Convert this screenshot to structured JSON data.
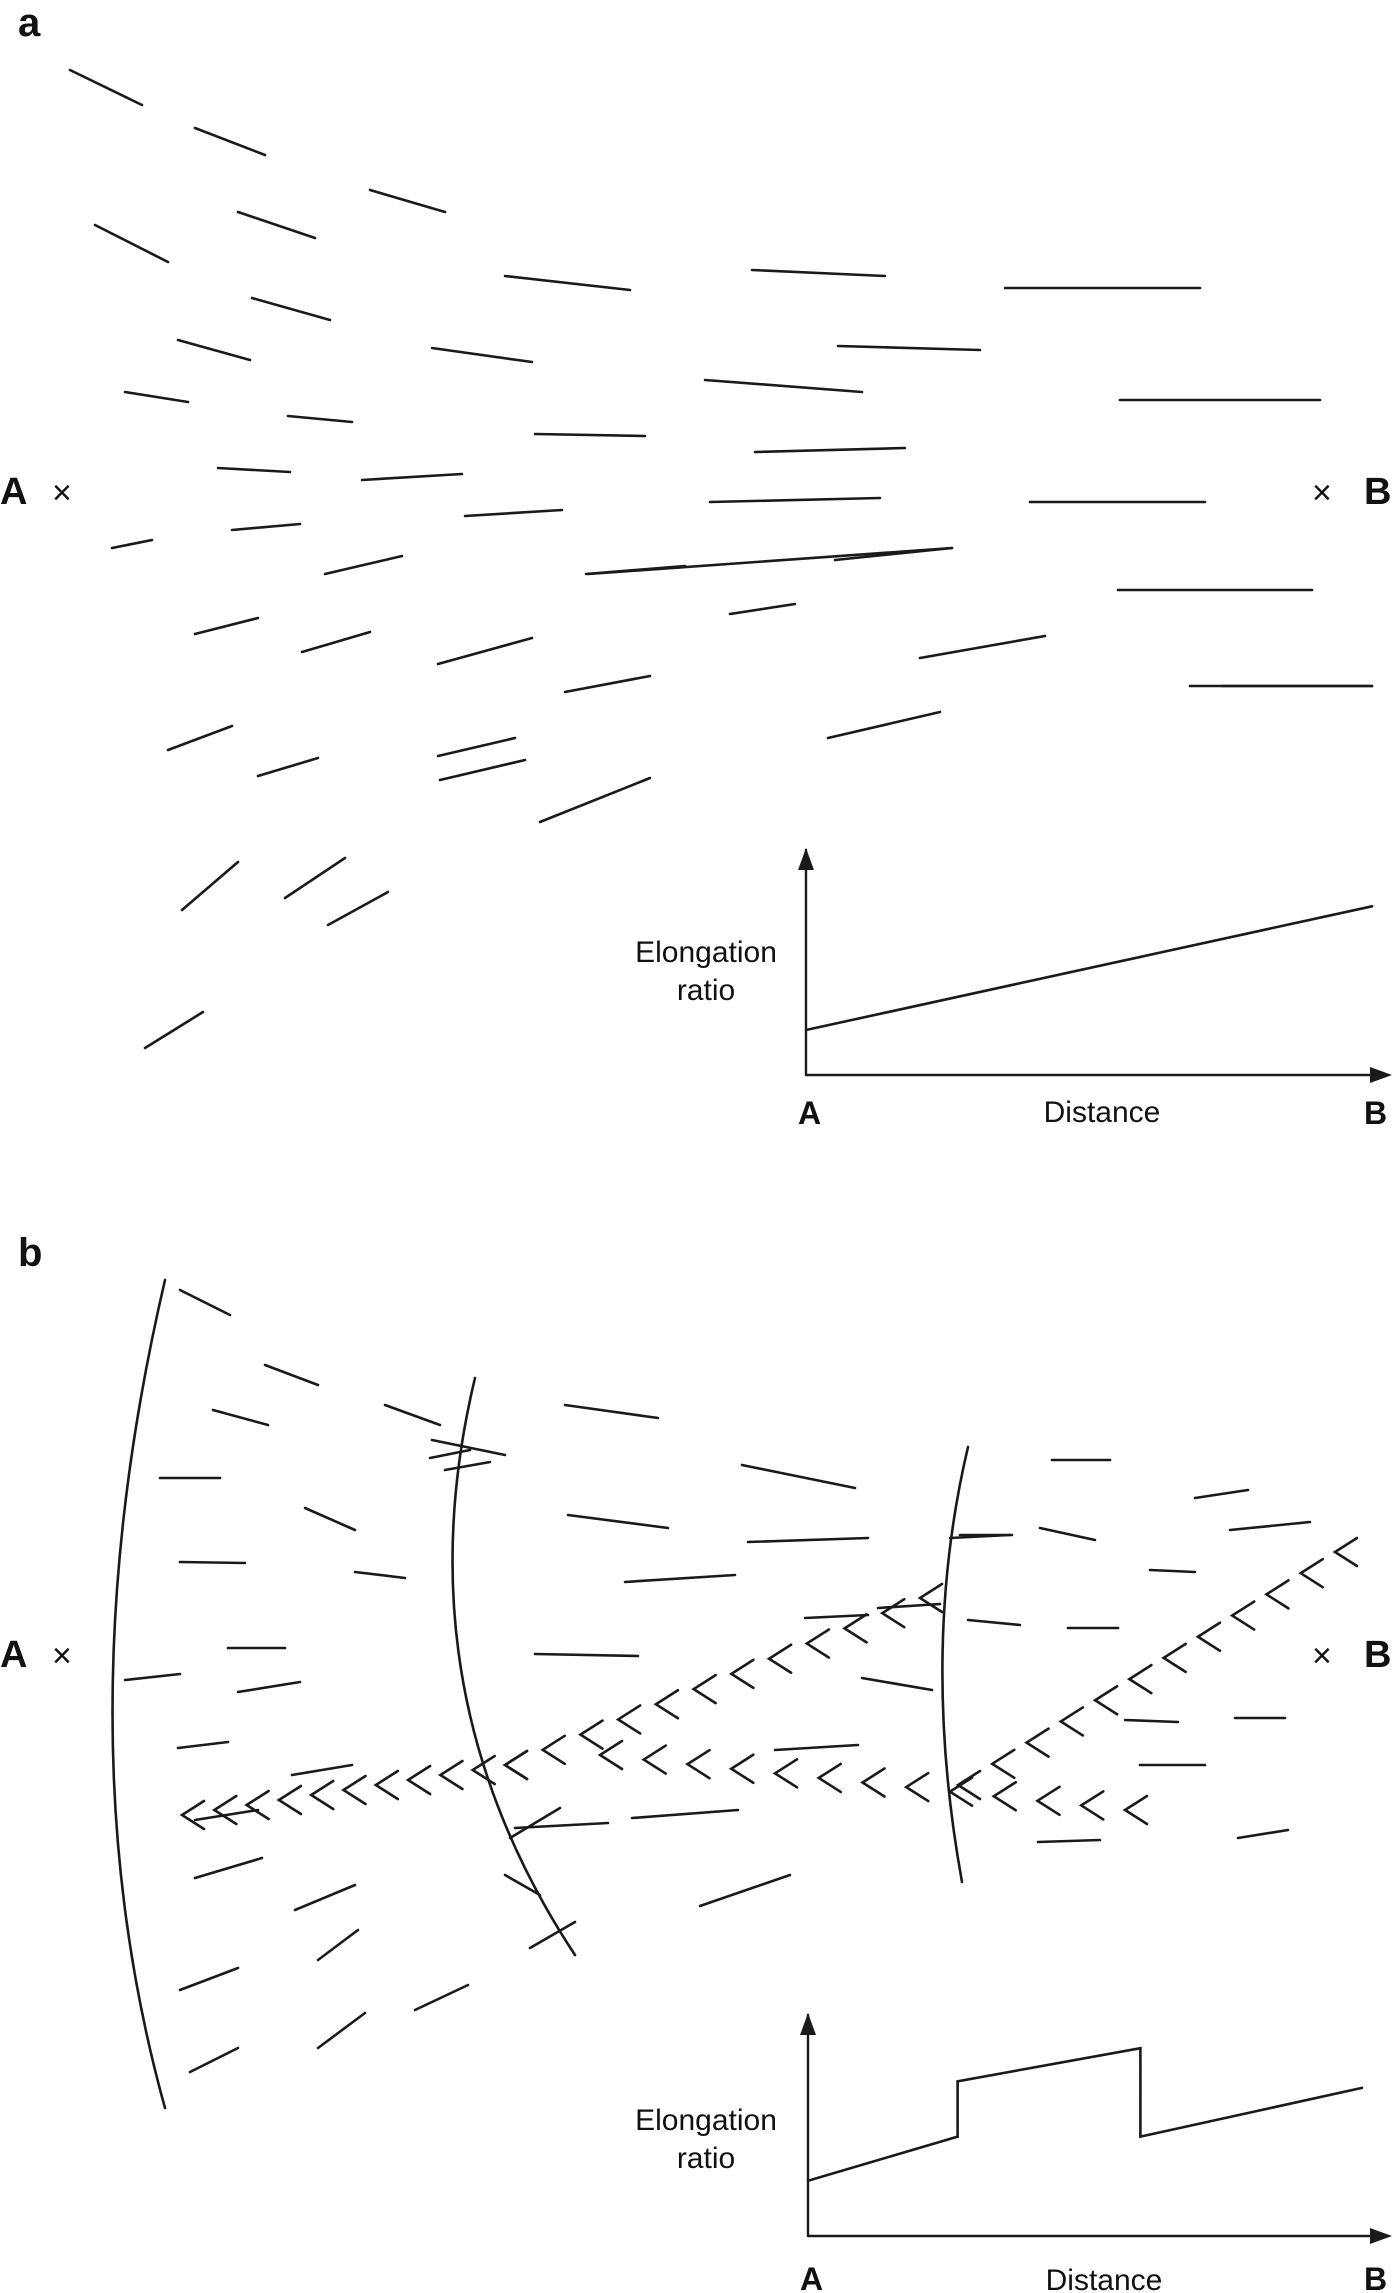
{
  "panels": [
    {
      "id": "a",
      "label": "a",
      "point_a": "A",
      "point_b": "B",
      "cross": "×",
      "inset_chart": {
        "ylabel_line1": "Elongation",
        "ylabel_line2": "ratio",
        "xlabel": "Distance",
        "x_start": "A",
        "x_end": "B"
      }
    },
    {
      "id": "b",
      "label": "b",
      "point_a": "A",
      "point_b": "B",
      "cross": "×",
      "inset_chart": {
        "ylabel_line1": "Elongation",
        "ylabel_line2": "ratio",
        "xlabel": "Distance",
        "x_start": "A",
        "x_end": "B"
      }
    }
  ],
  "chart_data": [
    {
      "type": "line",
      "series": [
        {
          "x": [
            0,
            1
          ],
          "y": [
            0.2,
            0.75
          ]
        }
      ],
      "xlabel": "Distance",
      "ylabel": "Elongation ratio",
      "x_tick_labels": [
        "A",
        "B"
      ],
      "xlim": [
        0,
        1
      ],
      "ylim": [
        0,
        1
      ]
    },
    {
      "type": "line",
      "series": [
        {
          "x": [
            0,
            0.27,
            0.27,
            0.6,
            0.6,
            1
          ],
          "y": [
            0.25,
            0.45,
            0.7,
            0.85,
            0.45,
            0.67
          ]
        }
      ],
      "xlabel": "Distance",
      "ylabel": "Elongation ratio",
      "x_tick_labels": [
        "A",
        "B"
      ],
      "xlim": [
        0,
        1
      ],
      "ylim": [
        0,
        1
      ]
    }
  ]
}
